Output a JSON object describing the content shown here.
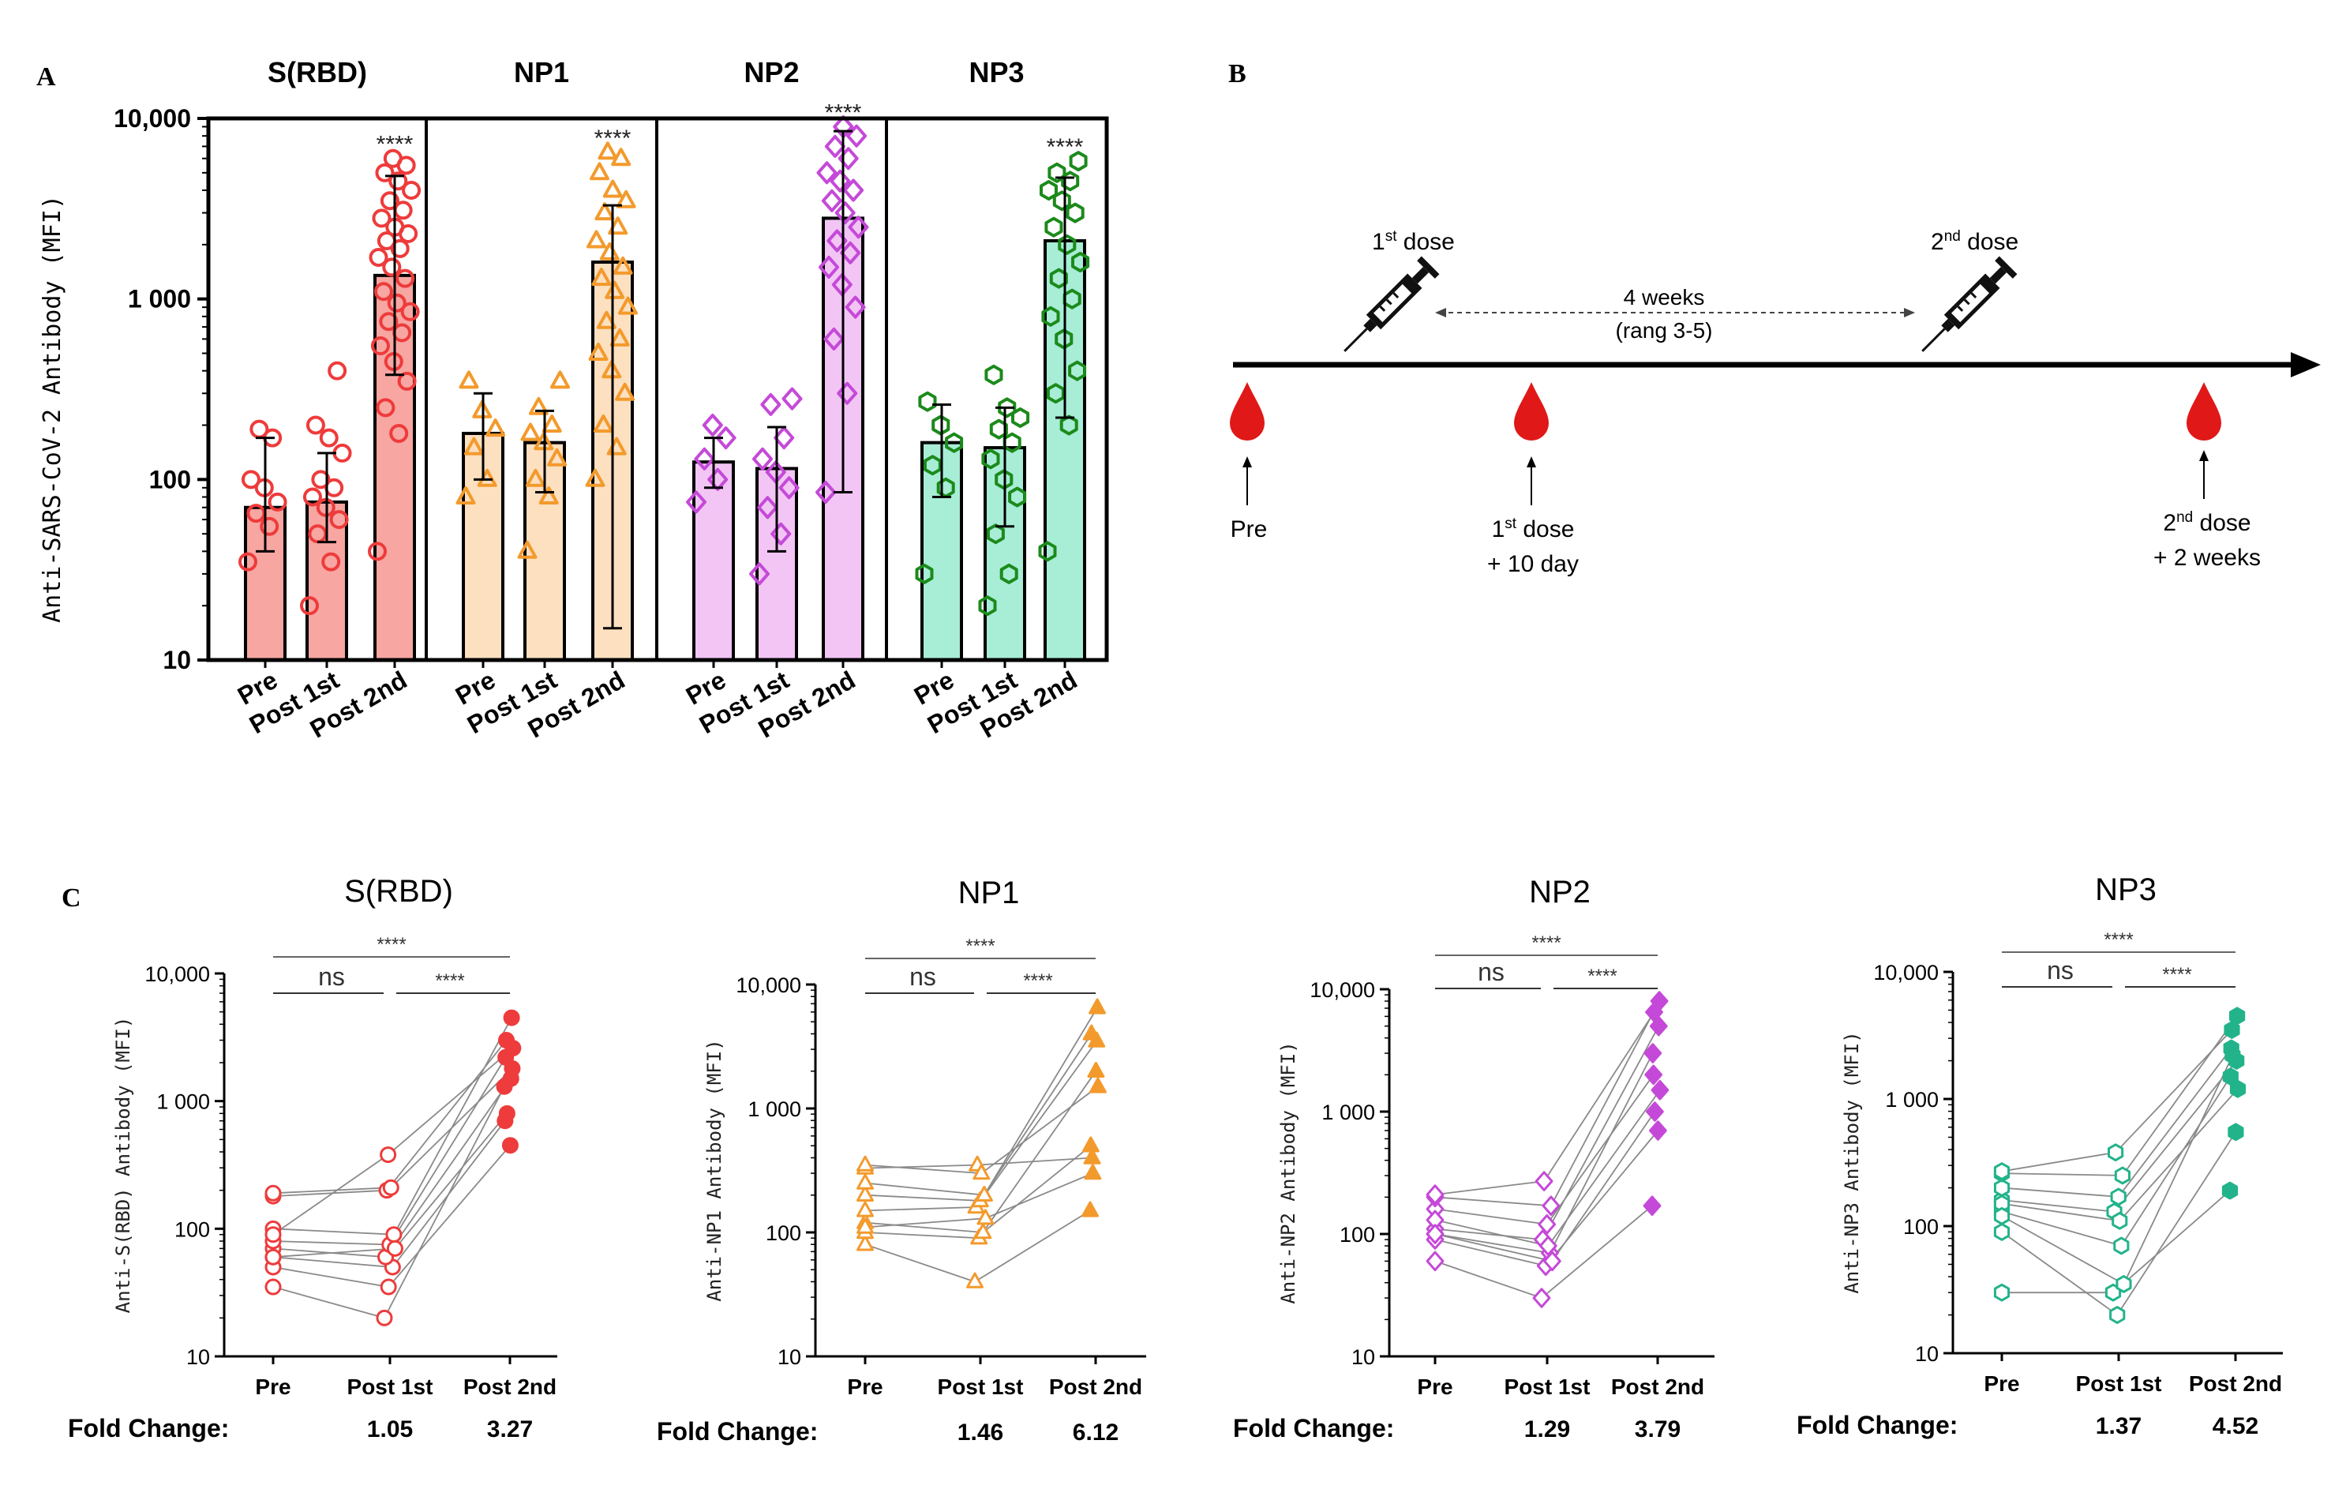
{
  "panels": {
    "a": "A",
    "b": "B",
    "c": "C"
  },
  "colors": {
    "srbd": "#ee3b3b",
    "srbd_fill": "#f7a6a2",
    "np1": "#f39a2c",
    "np1_fill": "#fde0c0",
    "np2": "#c549d8",
    "np2_fill": "#f2c5f5",
    "np3": "#1b8a1b",
    "np3_fill": "#a8edd6",
    "np3_c": "#22b38a",
    "blood": "#e01818"
  },
  "timeline": {
    "dose1": "1st dose",
    "dose1_base": "1",
    "dose1_sup": "st",
    "dose1_rest": " dose",
    "dose2_base": "2",
    "dose2_sup": "nd",
    "dose2_rest": " dose",
    "interval_line1": "4 weeks",
    "interval_line2": "(rang 3-5)",
    "sample_pre": "Pre",
    "sample1_base": "1",
    "sample1_sup": "st",
    "sample1_rest": " dose",
    "sample1_line2": "+ 10 day",
    "sample2_base": "2",
    "sample2_sup": "nd",
    "sample2_rest": " dose",
    "sample2_line2": "+ 2 weeks"
  },
  "chart_data": [
    {
      "type": "bar",
      "panel": "A",
      "ylabel": "Anti-SARS-CoV-2 Antibody (MFI)",
      "yscale": "log",
      "ylim": [
        10,
        10000
      ],
      "yticks": [
        10,
        100,
        1000,
        10000
      ],
      "ytick_labels": [
        "10",
        "100",
        "1 000",
        "10,000"
      ],
      "categories": [
        "Pre",
        "Post 1st",
        "Post 2nd"
      ],
      "groups": [
        {
          "name": "S(RBD)",
          "color_key": "srbd",
          "marker": "circle",
          "means": [
            70,
            75,
            1350
          ],
          "sd_low": [
            40,
            45,
            380
          ],
          "sd_high": [
            170,
            140,
            4800
          ],
          "significance": [
            "",
            "",
            "****"
          ],
          "points": [
            [
              35,
              55,
              65,
              75,
              90,
              100,
              170,
              190
            ],
            [
              20,
              35,
              50,
              60,
              70,
              80,
              90,
              100,
              140,
              170,
              200,
              400
            ],
            [
              40,
              180,
              250,
              350,
              450,
              550,
              650,
              750,
              850,
              950,
              1100,
              1300,
              1500,
              1700,
              1900,
              2100,
              2300,
              2500,
              2800,
              3100,
              3500,
              4000,
              4500,
              5000,
              5500,
              6000
            ]
          ]
        },
        {
          "name": "NP1",
          "color_key": "np1",
          "marker": "triangle",
          "means": [
            180,
            160,
            1600
          ],
          "sd_low": [
            100,
            85,
            15
          ],
          "sd_high": [
            300,
            240,
            3300
          ],
          "significance": [
            "",
            "",
            "****"
          ],
          "points": [
            [
              80,
              100,
              150,
              190,
              240,
              350
            ],
            [
              40,
              80,
              100,
              130,
              160,
              180,
              200,
              250,
              350
            ],
            [
              100,
              150,
              200,
              300,
              400,
              500,
              600,
              750,
              900,
              1100,
              1300,
              1500,
              1800,
              2100,
              2500,
              3000,
              3500,
              4000,
              5000,
              6000,
              6500
            ]
          ]
        },
        {
          "name": "NP2",
          "color_key": "np2",
          "marker": "diamond",
          "means": [
            125,
            115,
            2800
          ],
          "sd_low": [
            90,
            40,
            85
          ],
          "sd_high": [
            170,
            195,
            8500
          ],
          "significance": [
            "",
            "",
            "****"
          ],
          "points": [
            [
              75,
              100,
              130,
              170,
              200
            ],
            [
              30,
              50,
              70,
              90,
              110,
              130,
              170,
              260,
              280
            ],
            [
              85,
              300,
              600,
              900,
              1200,
              1500,
              1800,
              2100,
              2500,
              3000,
              3500,
              4000,
              4500,
              5000,
              6000,
              7000,
              8000,
              9000
            ]
          ]
        },
        {
          "name": "NP3",
          "color_key": "np3",
          "marker": "hexagon",
          "means": [
            160,
            150,
            2100
          ],
          "sd_low": [
            80,
            55,
            220
          ],
          "sd_high": [
            260,
            250,
            4700
          ],
          "significance": [
            "",
            "",
            "****"
          ],
          "points": [
            [
              30,
              90,
              120,
              160,
              200,
              270
            ],
            [
              20,
              30,
              50,
              80,
              100,
              130,
              160,
              190,
              220,
              250,
              380
            ],
            [
              40,
              200,
              300,
              400,
              600,
              800,
              1000,
              1300,
              1600,
              2000,
              2500,
              3000,
              3500,
              4000,
              4500,
              5000,
              5800
            ]
          ]
        }
      ]
    },
    {
      "type": "scatter",
      "panel": "C",
      "yscale": "log",
      "ylim": [
        10,
        10000
      ],
      "yticks": [
        10,
        100,
        1000,
        10000
      ],
      "ytick_labels": [
        "10",
        "100",
        "1 000",
        "10,000"
      ],
      "categories": [
        "Pre",
        "Post 1st",
        "Post 2nd"
      ],
      "fold_change_label": "Fold Change:",
      "subplots": [
        {
          "title": "S(RBD)",
          "ylabel": "Anti-S(RBD) Antibody (MFI)",
          "color_key": "srbd",
          "marker": "circle",
          "fold_change": [
            "1.05",
            "3.27"
          ],
          "sig_pre_post1": "ns",
          "sig_post1_post2": "****",
          "sig_pre_post2": "****",
          "pairs": [
            [
              35,
              20,
              1300
            ],
            [
              50,
              35,
              450
            ],
            [
              60,
              50,
              700
            ],
            [
              70,
              60,
              1500
            ],
            [
              80,
              75,
              2200
            ],
            [
              100,
              90,
              4500
            ],
            [
              180,
              200,
              3000
            ],
            [
              190,
              210,
              1800
            ],
            [
              60,
              70,
              800
            ],
            [
              90,
              380,
              2600
            ]
          ]
        },
        {
          "title": "NP1",
          "ylabel": "Anti-NP1 Antibody (MFI)",
          "color_key": "np1",
          "marker": "triangle",
          "fold_change": [
            "1.46",
            "6.12"
          ],
          "sig_pre_post1": "ns",
          "sig_post1_post2": "****",
          "sig_pre_post2": "****",
          "pairs": [
            [
              80,
              40,
              150
            ],
            [
              100,
              90,
              2000
            ],
            [
              120,
              100,
              500
            ],
            [
              150,
              160,
              3500
            ],
            [
              200,
              180,
              4000
            ],
            [
              250,
              200,
              6500
            ],
            [
              330,
              350,
              400
            ],
            [
              350,
              300,
              1500
            ],
            [
              110,
              130,
              300
            ]
          ]
        },
        {
          "title": "NP2",
          "ylabel": "Anti-NP2 Antibody (MFI)",
          "color_key": "np2",
          "marker": "diamond",
          "fold_change": [
            "1.29",
            "3.79"
          ],
          "sig_pre_post1": "ns",
          "sig_post1_post2": "****",
          "sig_pre_post2": "****",
          "pairs": [
            [
              60,
              30,
              170
            ],
            [
              90,
              55,
              700
            ],
            [
              100,
              70,
              3000
            ],
            [
              110,
              90,
              5000
            ],
            [
              160,
              120,
              2000
            ],
            [
              200,
              170,
              8000
            ],
            [
              210,
              270,
              6500
            ],
            [
              130,
              80,
              1500
            ],
            [
              100,
              60,
              1000
            ]
          ]
        },
        {
          "title": "NP3",
          "ylabel": "Anti-NP3 Antibody (MFI)",
          "color_key": "np3_c",
          "marker": "hexagon",
          "fold_change": [
            "1.37",
            "4.52"
          ],
          "sig_pre_post1": "ns",
          "sig_post1_post2": "****",
          "sig_pre_post2": "****",
          "pairs": [
            [
              30,
              30,
              190
            ],
            [
              90,
              20,
              550
            ],
            [
              130,
              70,
              1500
            ],
            [
              160,
              130,
              2000
            ],
            [
              200,
              170,
              2500
            ],
            [
              260,
              250,
              4500
            ],
            [
              270,
              380,
              3500
            ],
            [
              150,
              110,
              1200
            ],
            [
              120,
              35,
              2200
            ]
          ]
        }
      ]
    }
  ]
}
